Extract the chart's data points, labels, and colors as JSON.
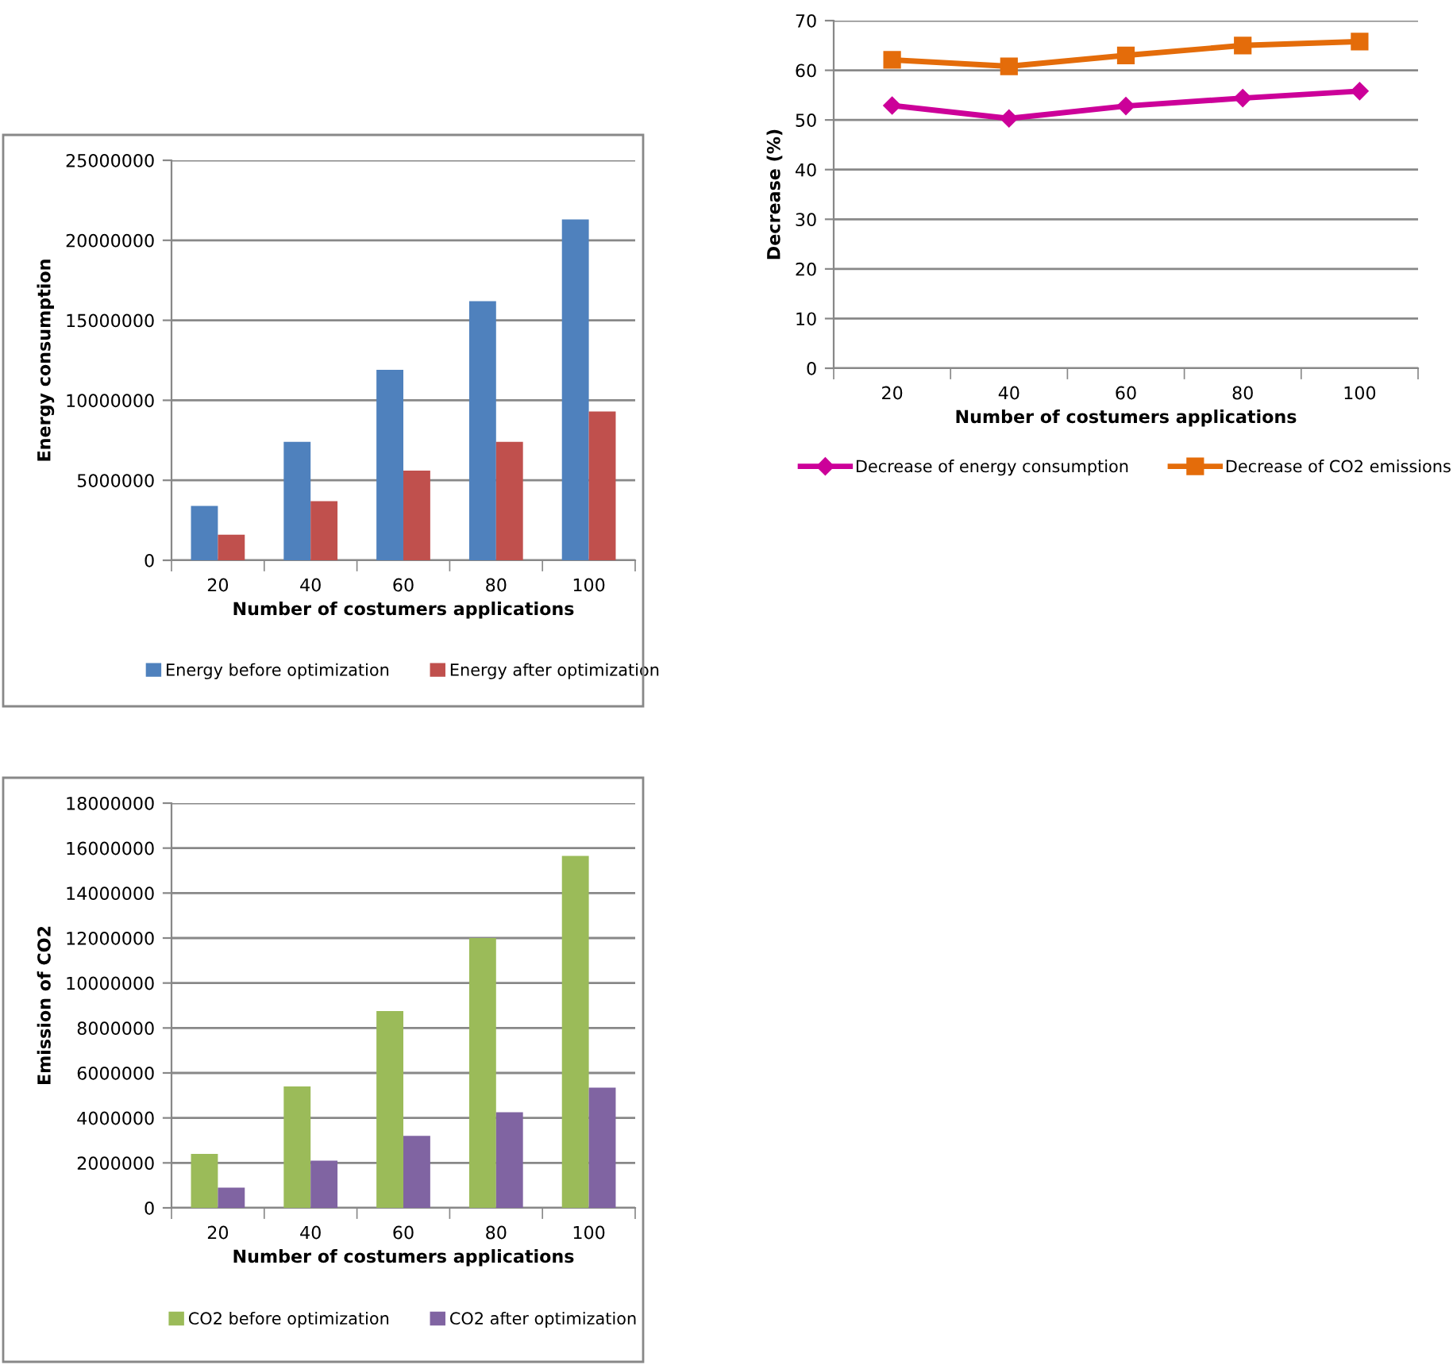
{
  "chart_data": [
    {
      "type": "bar",
      "xlabel": "Number of costumers applications",
      "ylabel": "Energy consumption",
      "categories": [
        "20",
        "40",
        "60",
        "80",
        "100"
      ],
      "series": [
        {
          "name": "Energy before optimization",
          "color": "#4f81bd",
          "values": [
            3400000,
            7400000,
            11900000,
            16200000,
            21300000
          ]
        },
        {
          "name": "Energy after optimization",
          "color": "#c0504d",
          "values": [
            1600000,
            3700000,
            5600000,
            7400000,
            9300000
          ]
        }
      ],
      "ylim": [
        0,
        25000000
      ],
      "yticks": [
        0,
        5000000,
        10000000,
        15000000,
        20000000,
        25000000
      ],
      "grid": "y",
      "legend": "bottom"
    },
    {
      "type": "line",
      "xlabel": "Number of costumers applications",
      "ylabel": "Decrease (%)",
      "categories": [
        "20",
        "40",
        "60",
        "80",
        "100"
      ],
      "series": [
        {
          "name": "Decrease of energy consumption",
          "color": "#cc0099",
          "marker": "diamond",
          "values": [
            52.9,
            50.3,
            52.8,
            54.4,
            55.8
          ]
        },
        {
          "name": "Decrease of CO2 emissions",
          "color": "#e46c0a",
          "marker": "square",
          "values": [
            62.1,
            60.8,
            63.0,
            65.0,
            65.8
          ]
        }
      ],
      "ylim": [
        0,
        70
      ],
      "yticks": [
        0,
        10,
        20,
        30,
        40,
        50,
        60,
        70
      ],
      "grid": "y",
      "legend": "bottom"
    },
    {
      "type": "bar",
      "xlabel": "Number of costumers applications",
      "ylabel": "Emission of CO2",
      "categories": [
        "20",
        "40",
        "60",
        "80",
        "100"
      ],
      "series": [
        {
          "name": "CO2 before optimization",
          "color": "#9bbb59",
          "values": [
            2400000,
            5400000,
            8750000,
            12000000,
            15650000
          ]
        },
        {
          "name": "CO2 after optimization",
          "color": "#8064a2",
          "values": [
            900000,
            2100000,
            3200000,
            4250000,
            5350000
          ]
        }
      ],
      "ylim": [
        0,
        18000000
      ],
      "yticks": [
        0,
        2000000,
        4000000,
        6000000,
        8000000,
        10000000,
        12000000,
        14000000,
        16000000,
        18000000
      ],
      "grid": "y",
      "legend": "bottom"
    }
  ]
}
